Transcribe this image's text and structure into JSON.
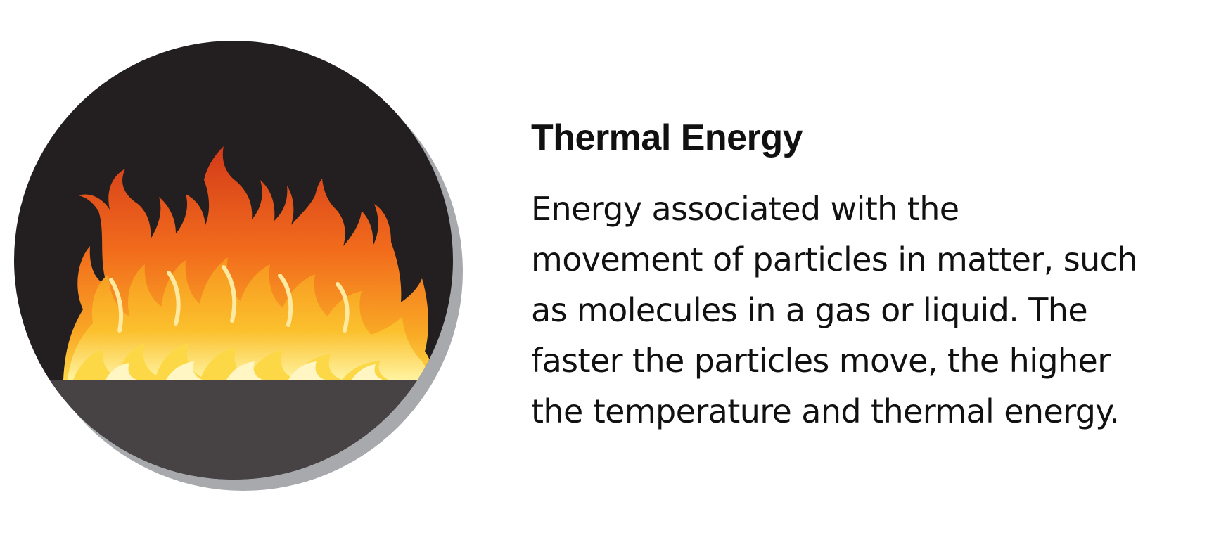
{
  "title": "Thermal Energy",
  "description_lines": [
    "Energy associated with the",
    "movement of particles in matter, such",
    "as molecules in a gas or liquid. The",
    "faster the particles move, the higher",
    "the temperature and thermal energy."
  ],
  "illustration": {
    "icon": "flame-icon",
    "colors": {
      "background": "#231f20",
      "ground": "#474344",
      "shadow": "#a7a9ac",
      "flame_outer": "#d9491f",
      "flame_mid": "#f7931e",
      "flame_inner": "#fcd846",
      "flame_core": "#fff6c4"
    }
  }
}
